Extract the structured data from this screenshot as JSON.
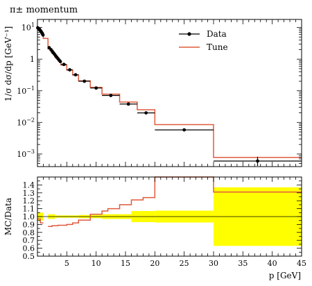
{
  "chart_data": [
    {
      "type": "scatter",
      "title": "π± momentum",
      "ylabel": "1/σ dσ/dp [GeV⁻¹]",
      "yscale": "log",
      "xlim": [
        0,
        45
      ],
      "ylim": [
        0.0004,
        18
      ],
      "y_ticks": [
        {
          "value": 10,
          "base": "10",
          "exp": "1"
        },
        {
          "value": 1,
          "base": "1",
          "exp": ""
        },
        {
          "value": 0.1,
          "base": "10",
          "exp": "−1"
        },
        {
          "value": 0.01,
          "base": "10",
          "exp": "−2"
        },
        {
          "value": 0.001,
          "base": "10",
          "exp": "−3"
        }
      ],
      "legend": {
        "placement": "top-right",
        "entries": [
          "Data",
          "Tune"
        ]
      },
      "series": [
        {
          "name": "Data",
          "style": "points-with-errorbars",
          "color": "#000000",
          "points": [
            {
              "x": 0.05,
              "xlo": 0.0,
              "xhi": 0.1,
              "y": 9.8,
              "ylo": 9.0,
              "yhi": 10.6
            },
            {
              "x": 0.15,
              "xlo": 0.1,
              "xhi": 0.2,
              "y": 9.5,
              "ylo": 8.8,
              "yhi": 10.2
            },
            {
              "x": 0.25,
              "xlo": 0.2,
              "xhi": 0.3,
              "y": 9.1,
              "ylo": 8.4,
              "yhi": 9.8
            },
            {
              "x": 0.35,
              "xlo": 0.3,
              "xhi": 0.4,
              "y": 8.7,
              "ylo": 8.0,
              "yhi": 9.4
            },
            {
              "x": 0.45,
              "xlo": 0.4,
              "xhi": 0.5,
              "y": 8.2,
              "ylo": 7.6,
              "yhi": 8.9
            },
            {
              "x": 0.55,
              "xlo": 0.5,
              "xhi": 0.6,
              "y": 7.8,
              "ylo": 7.2,
              "yhi": 8.4
            },
            {
              "x": 0.65,
              "xlo": 0.6,
              "xhi": 0.7,
              "y": 7.3,
              "ylo": 6.8,
              "yhi": 7.9
            },
            {
              "x": 0.75,
              "xlo": 0.7,
              "xhi": 0.8,
              "y": 6.8,
              "ylo": 6.3,
              "yhi": 7.3
            },
            {
              "x": 0.85,
              "xlo": 0.8,
              "xhi": 0.9,
              "y": 6.3,
              "ylo": 5.9,
              "yhi": 6.8
            },
            {
              "x": 0.95,
              "xlo": 0.9,
              "xhi": 1.0,
              "y": 5.8,
              "ylo": 5.4,
              "yhi": 6.2
            },
            {
              "x": 2.0,
              "xlo": 1.8,
              "xhi": 2.2,
              "y": 2.3,
              "ylo": 2.15,
              "yhi": 2.45
            },
            {
              "x": 2.3,
              "xlo": 2.2,
              "xhi": 2.4,
              "y": 2.0,
              "ylo": 1.88,
              "yhi": 2.12
            },
            {
              "x": 2.5,
              "xlo": 2.4,
              "xhi": 2.6,
              "y": 1.8,
              "ylo": 1.7,
              "yhi": 1.9
            },
            {
              "x": 2.7,
              "xlo": 2.6,
              "xhi": 2.8,
              "y": 1.6,
              "ylo": 1.51,
              "yhi": 1.69
            },
            {
              "x": 2.9,
              "xlo": 2.8,
              "xhi": 3.0,
              "y": 1.43,
              "ylo": 1.35,
              "yhi": 1.51
            },
            {
              "x": 3.1,
              "xlo": 3.0,
              "xhi": 3.2,
              "y": 1.28,
              "ylo": 1.21,
              "yhi": 1.35
            },
            {
              "x": 3.3,
              "xlo": 3.2,
              "xhi": 3.4,
              "y": 1.15,
              "ylo": 1.09,
              "yhi": 1.21
            },
            {
              "x": 3.5,
              "xlo": 3.4,
              "xhi": 3.6,
              "y": 1.03,
              "ylo": 0.98,
              "yhi": 1.08
            },
            {
              "x": 3.7,
              "xlo": 3.6,
              "xhi": 3.8,
              "y": 0.93,
              "ylo": 0.88,
              "yhi": 0.98
            },
            {
              "x": 3.9,
              "xlo": 3.8,
              "xhi": 4.0,
              "y": 0.84,
              "ylo": 0.8,
              "yhi": 0.88
            },
            {
              "x": 4.5,
              "xlo": 4.0,
              "xhi": 5.0,
              "y": 0.68,
              "ylo": 0.64,
              "yhi": 0.72
            },
            {
              "x": 5.5,
              "xlo": 5.0,
              "xhi": 6.0,
              "y": 0.46,
              "ylo": 0.43,
              "yhi": 0.49
            },
            {
              "x": 6.5,
              "xlo": 6.0,
              "xhi": 7.0,
              "y": 0.32,
              "ylo": 0.3,
              "yhi": 0.34
            },
            {
              "x": 8.0,
              "xlo": 7.0,
              "xhi": 9.0,
              "y": 0.2,
              "ylo": 0.188,
              "yhi": 0.212
            },
            {
              "x": 10.0,
              "xlo": 9.0,
              "xhi": 11.0,
              "y": 0.122,
              "ylo": 0.114,
              "yhi": 0.13
            },
            {
              "x": 12.5,
              "xlo": 11.0,
              "xhi": 14.0,
              "y": 0.071,
              "ylo": 0.066,
              "yhi": 0.076
            },
            {
              "x": 15.5,
              "xlo": 14.0,
              "xhi": 17.0,
              "y": 0.038,
              "ylo": 0.035,
              "yhi": 0.041
            },
            {
              "x": 18.5,
              "xlo": 17.0,
              "xhi": 20.0,
              "y": 0.02,
              "ylo": 0.0185,
              "yhi": 0.0215
            },
            {
              "x": 25.0,
              "xlo": 20.0,
              "xhi": 30.0,
              "y": 0.0058,
              "ylo": 0.0053,
              "yhi": 0.0063
            },
            {
              "x": 37.5,
              "xlo": 30.0,
              "xhi": 45.0,
              "y": 0.0006,
              "ylo": 0.00042,
              "yhi": 0.00082
            }
          ]
        },
        {
          "name": "Tune",
          "style": "step",
          "color": "#e05a3c",
          "bins": [
            {
              "xlo": 0.0,
              "xhi": 0.5,
              "y": 9.5
            },
            {
              "xlo": 0.5,
              "xhi": 1.0,
              "y": 7.0
            },
            {
              "xlo": 1.0,
              "xhi": 1.8,
              "y": 4.5
            },
            {
              "xlo": 1.8,
              "xhi": 2.4,
              "y": 2.1
            },
            {
              "xlo": 2.4,
              "xhi": 3.0,
              "y": 1.55
            },
            {
              "xlo": 3.0,
              "xhi": 3.6,
              "y": 1.12
            },
            {
              "xlo": 3.6,
              "xhi": 4.0,
              "y": 0.86
            },
            {
              "xlo": 4.0,
              "xhi": 5.0,
              "y": 0.65
            },
            {
              "xlo": 5.0,
              "xhi": 6.0,
              "y": 0.45
            },
            {
              "xlo": 6.0,
              "xhi": 7.0,
              "y": 0.315
            },
            {
              "xlo": 7.0,
              "xhi": 9.0,
              "y": 0.205
            },
            {
              "xlo": 9.0,
              "xhi": 11.0,
              "y": 0.128
            },
            {
              "xlo": 11.0,
              "xhi": 14.0,
              "y": 0.078
            },
            {
              "xlo": 14.0,
              "xhi": 17.0,
              "y": 0.044
            },
            {
              "xlo": 17.0,
              "xhi": 20.0,
              "y": 0.025
            },
            {
              "xlo": 20.0,
              "xhi": 30.0,
              "y": 0.0085
            },
            {
              "xlo": 30.0,
              "xhi": 45.0,
              "y": 0.00078
            }
          ]
        }
      ]
    },
    {
      "type": "line",
      "title": "",
      "xlabel": "p [GeV]",
      "ylabel": "MC/Data",
      "xlim": [
        0,
        45
      ],
      "ylim": [
        0.5,
        1.5
      ],
      "x_ticks": [
        5,
        10,
        15,
        20,
        25,
        30,
        35,
        40,
        45
      ],
      "y_ticks": [
        0.5,
        0.6,
        0.7,
        0.8,
        0.9,
        1.0,
        1.1,
        1.2,
        1.3,
        1.4
      ],
      "reference_line": 1.0,
      "uncertainty_band": {
        "color": "#ffff00",
        "bins": [
          {
            "xlo": 0.0,
            "xhi": 1.0,
            "lo": 0.95,
            "hi": 1.05
          },
          {
            "xlo": 1.8,
            "xhi": 3.0,
            "lo": 0.97,
            "hi": 1.03
          },
          {
            "xlo": 3.0,
            "xhi": 7.0,
            "lo": 0.985,
            "hi": 1.015
          },
          {
            "xlo": 7.0,
            "xhi": 11.0,
            "lo": 0.98,
            "hi": 1.02
          },
          {
            "xlo": 11.0,
            "xhi": 16.0,
            "lo": 0.97,
            "hi": 1.03
          },
          {
            "xlo": 16.0,
            "xhi": 20.0,
            "lo": 0.93,
            "hi": 1.07
          },
          {
            "xlo": 20.0,
            "xhi": 30.0,
            "lo": 0.925,
            "hi": 1.075
          },
          {
            "xlo": 30.0,
            "xhi": 45.0,
            "lo": 0.63,
            "hi": 1.37
          }
        ]
      },
      "ratio": {
        "name": "Tune",
        "color": "#e05a3c",
        "bins": [
          {
            "xlo": 0.0,
            "xhi": 0.5,
            "y": 0.97
          },
          {
            "xlo": 0.5,
            "xhi": 1.0,
            "y": 0.92
          },
          {
            "xlo": 1.8,
            "xhi": 2.5,
            "y": 0.875
          },
          {
            "xlo": 2.5,
            "xhi": 3.5,
            "y": 0.885
          },
          {
            "xlo": 3.5,
            "xhi": 5.0,
            "y": 0.89
          },
          {
            "xlo": 5.0,
            "xhi": 6.0,
            "y": 0.9
          },
          {
            "xlo": 6.0,
            "xhi": 7.0,
            "y": 0.92
          },
          {
            "xlo": 7.0,
            "xhi": 9.0,
            "y": 0.955
          },
          {
            "xlo": 9.0,
            "xhi": 11.0,
            "y": 1.03
          },
          {
            "xlo": 11.0,
            "xhi": 12.0,
            "y": 1.07
          },
          {
            "xlo": 12.0,
            "xhi": 14.0,
            "y": 1.1
          },
          {
            "xlo": 14.0,
            "xhi": 16.0,
            "y": 1.15
          },
          {
            "xlo": 16.0,
            "xhi": 18.0,
            "y": 1.21
          },
          {
            "xlo": 18.0,
            "xhi": 20.0,
            "y": 1.24
          },
          {
            "xlo": 20.0,
            "xhi": 30.0,
            "y": 1.6
          },
          {
            "xlo": 30.0,
            "xhi": 45.0,
            "y": 1.31
          }
        ]
      }
    }
  ]
}
